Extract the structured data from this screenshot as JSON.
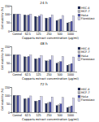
{
  "chart_data": [
    {
      "type": "bar",
      "title": "24 h",
      "x_label": "Capparis extract concentration (μg/ml)",
      "y_label": "Cell viability (%)",
      "categories": [
        "Control",
        "62.5",
        "125",
        "250",
        "500",
        "1000"
      ],
      "series": [
        {
          "name": "HSC-4",
          "color": "#1f2a5a",
          "values": [
            100,
            95,
            86,
            76,
            62,
            48
          ]
        },
        {
          "name": "MCF-7",
          "color": "#b4b4bc",
          "values": [
            100,
            92,
            82,
            73,
            66,
            52
          ]
        },
        {
          "name": "HeLa",
          "color": "#4a50a8",
          "values": [
            100,
            94,
            88,
            80,
            70,
            57
          ]
        },
        {
          "name": "Fibroblast",
          "color": "#cdcdec",
          "values": [
            100,
            99,
            97,
            95,
            92,
            90
          ]
        }
      ],
      "ylim": [
        0,
        150
      ],
      "yticks": [
        0,
        50,
        100,
        150
      ],
      "legend": "right"
    },
    {
      "type": "bar",
      "title": "48 h",
      "x_label": "Capparis extract concentration (μg/ml)",
      "y_label": "Cell viability (%)",
      "categories": [
        "Control",
        "62.5",
        "125",
        "250",
        "500",
        "1000"
      ],
      "series": [
        {
          "name": "HSC-4",
          "color": "#1f2a5a",
          "values": [
            100,
            88,
            76,
            64,
            50,
            38
          ]
        },
        {
          "name": "MCF-7",
          "color": "#b4b4bc",
          "values": [
            100,
            86,
            74,
            63,
            54,
            42
          ]
        },
        {
          "name": "HeLa",
          "color": "#4a50a8",
          "values": [
            100,
            90,
            80,
            70,
            60,
            48
          ]
        },
        {
          "name": "Fibroblast",
          "color": "#cdcdec",
          "values": [
            100,
            98,
            95,
            93,
            90,
            87
          ]
        }
      ],
      "ylim": [
        0,
        150
      ],
      "yticks": [
        0,
        50,
        100,
        150
      ],
      "legend": "right"
    },
    {
      "type": "bar",
      "title": "72 h",
      "x_label": "Capparis extract concentration (μg/ml)",
      "y_label": "Cell viability (%)",
      "categories": [
        "Control",
        "62.5",
        "125",
        "250",
        "500",
        "1000"
      ],
      "series": [
        {
          "name": "HSC-4",
          "color": "#1f2a5a",
          "values": [
            100,
            80,
            66,
            52,
            40,
            28
          ]
        },
        {
          "name": "MCF-7",
          "color": "#b4b4bc",
          "values": [
            100,
            78,
            65,
            54,
            44,
            33
          ]
        },
        {
          "name": "HeLa",
          "color": "#4a50a8",
          "values": [
            100,
            84,
            72,
            60,
            50,
            38
          ]
        },
        {
          "name": "Fibroblast",
          "color": "#cdcdec",
          "values": [
            100,
            97,
            94,
            91,
            88,
            84
          ]
        }
      ],
      "ylim": [
        0,
        150
      ],
      "yticks": [
        0,
        50,
        100,
        150
      ],
      "legend": "right"
    }
  ]
}
